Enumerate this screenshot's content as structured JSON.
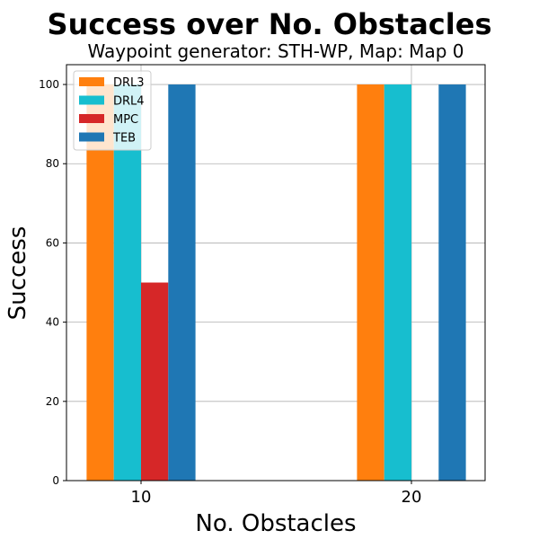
{
  "chart_data": {
    "type": "bar",
    "title": "Success over No. Obstacles",
    "subtitle": "Waypoint generator: STH-WP, Map: Map 0",
    "xlabel": "No. Obstacles",
    "ylabel": "Success",
    "categories": [
      "10",
      "20"
    ],
    "ylim": [
      0,
      105
    ],
    "yticks": [
      0,
      20,
      40,
      60,
      80,
      100
    ],
    "grid": true,
    "legend_position": "top-left",
    "series": [
      {
        "name": "DRL3",
        "color": "#ff7f0e",
        "values": [
          100,
          100
        ]
      },
      {
        "name": "DRL4",
        "color": "#17becf",
        "values": [
          100,
          100
        ]
      },
      {
        "name": "MPC",
        "color": "#d62728",
        "values": [
          50,
          0
        ]
      },
      {
        "name": "TEB",
        "color": "#1f77b4",
        "values": [
          100,
          100
        ]
      }
    ]
  }
}
